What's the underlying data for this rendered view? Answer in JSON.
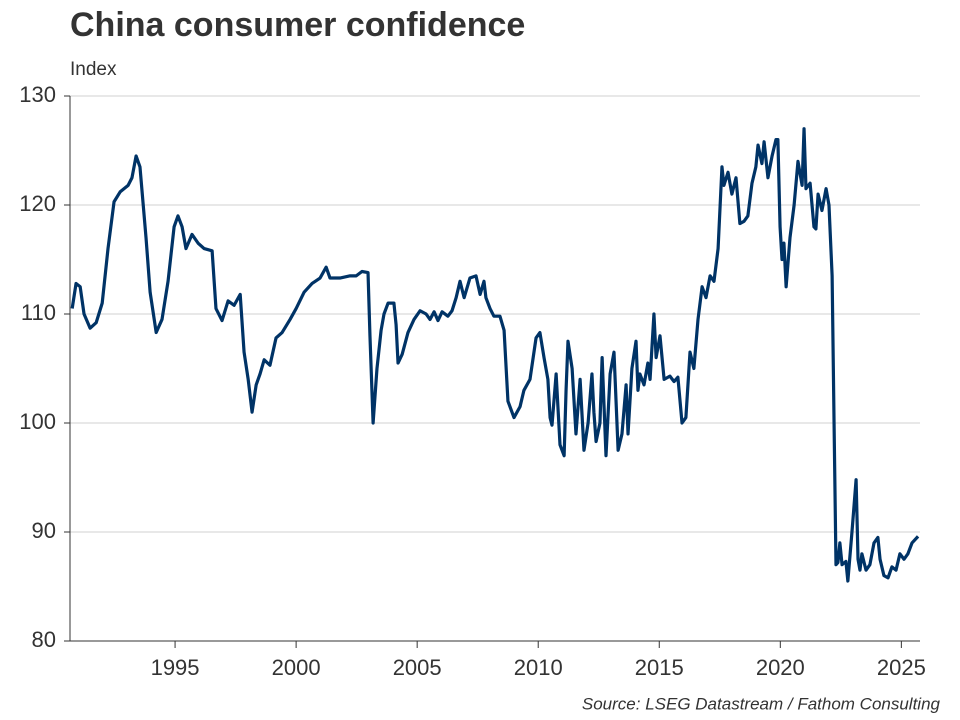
{
  "chart_data": {
    "type": "line",
    "title": "China consumer confidence",
    "subtitle": "Index",
    "source": "Source: LSEG Datastream / Fathom Consulting",
    "xlim": [
      1990.66,
      2025.77
    ],
    "xticks": [
      1995,
      2000,
      2005,
      2010,
      2015,
      2020,
      2025
    ],
    "ylim": [
      80,
      130
    ],
    "yticks": [
      80,
      90,
      100,
      110,
      120,
      130
    ],
    "grid": true,
    "series": [
      {
        "name": "China consumer confidence",
        "color": "#003366",
        "x": [
          1990.75,
          1990.91,
          1991.08,
          1991.24,
          1991.49,
          1991.74,
          1991.99,
          1992.23,
          1992.48,
          1992.73,
          1993.06,
          1993.22,
          1993.39,
          1993.55,
          1993.8,
          1993.97,
          1994.22,
          1994.46,
          1994.71,
          1994.96,
          1995.12,
          1995.29,
          1995.45,
          1995.7,
          1995.95,
          1996.2,
          1996.53,
          1996.69,
          1996.94,
          1997.19,
          1997.44,
          1997.69,
          1997.85,
          1998.02,
          1998.18,
          1998.35,
          1998.51,
          1998.68,
          1998.92,
          1999.17,
          1999.42,
          1999.75,
          2000.0,
          2000.33,
          2000.66,
          2000.99,
          2001.24,
          2001.4,
          2001.81,
          2002.23,
          2002.48,
          2002.72,
          2002.97,
          2003.05,
          2003.18,
          2003.34,
          2003.51,
          2003.63,
          2003.8,
          2004.04,
          2004.13,
          2004.21,
          2004.38,
          2004.62,
          2004.87,
          2005.12,
          2005.37,
          2005.53,
          2005.7,
          2005.86,
          2006.03,
          2006.27,
          2006.44,
          2006.61,
          2006.77,
          2006.94,
          2007.18,
          2007.43,
          2007.6,
          2007.76,
          2007.84,
          2008.01,
          2008.17,
          2008.42,
          2008.59,
          2008.75,
          2009.0,
          2009.25,
          2009.41,
          2009.66,
          2009.91,
          2010.07,
          2010.24,
          2010.4,
          2010.49,
          2010.57,
          2010.74,
          2010.9,
          2011.07,
          2011.15,
          2011.23,
          2011.4,
          2011.56,
          2011.73,
          2011.89,
          2012.06,
          2012.22,
          2012.3,
          2012.39,
          2012.55,
          2012.64,
          2012.8,
          2012.97,
          2013.13,
          2013.3,
          2013.46,
          2013.63,
          2013.71,
          2013.87,
          2014.04,
          2014.12,
          2014.2,
          2014.37,
          2014.53,
          2014.62,
          2014.78,
          2014.87,
          2015.03,
          2015.2,
          2015.44,
          2015.61,
          2015.77,
          2015.94,
          2016.1,
          2016.27,
          2016.43,
          2016.6,
          2016.77,
          2016.93,
          2017.1,
          2017.26,
          2017.43,
          2017.59,
          2017.67,
          2017.84,
          2018.0,
          2018.17,
          2018.33,
          2018.5,
          2018.66,
          2018.83,
          2018.99,
          2019.08,
          2019.24,
          2019.33,
          2019.49,
          2019.66,
          2019.82,
          2019.9,
          2019.99,
          2020.07,
          2020.15,
          2020.24,
          2020.4,
          2020.57,
          2020.73,
          2020.9,
          2020.98,
          2021.06,
          2021.23,
          2021.39,
          2021.47,
          2021.56,
          2021.72,
          2021.89,
          2022.01,
          2022.14,
          2022.22,
          2022.3,
          2022.38,
          2022.46,
          2022.55,
          2022.71,
          2022.79,
          2022.96,
          2023.13,
          2023.21,
          2023.29,
          2023.37,
          2023.54,
          2023.7,
          2023.87,
          2024.03,
          2024.12,
          2024.28,
          2024.45,
          2024.61,
          2024.78,
          2024.94,
          2025.11,
          2025.27,
          2025.44,
          2025.69
        ],
        "values": [
          110.5,
          112.8,
          112.5,
          110,
          108.7,
          109.2,
          111,
          116,
          120.3,
          121.2,
          121.8,
          122.5,
          124.5,
          123.5,
          117,
          112,
          108.3,
          109.5,
          113,
          118,
          119,
          118,
          116,
          117.3,
          116.5,
          116,
          115.8,
          110.5,
          109.4,
          111.2,
          110.8,
          111.8,
          106.5,
          104,
          101,
          103.5,
          104.5,
          105.8,
          105.3,
          107.8,
          108.3,
          109.5,
          110.5,
          112,
          112.8,
          113.3,
          114.3,
          113.3,
          113.3,
          113.5,
          113.5,
          113.9,
          113.8,
          108,
          100,
          105,
          108.5,
          110,
          111,
          111,
          109,
          105.5,
          106.3,
          108.3,
          109.5,
          110.3,
          110,
          109.5,
          110.2,
          109.4,
          110.2,
          109.8,
          110.3,
          111.5,
          113,
          111.5,
          113.3,
          113.5,
          111.8,
          113,
          111.5,
          110.5,
          109.8,
          109.8,
          108.5,
          102,
          100.5,
          101.5,
          103,
          104,
          107.8,
          108.3,
          106,
          104,
          100.5,
          99.8,
          104.5,
          98,
          97,
          103,
          107.5,
          105,
          99,
          104,
          97.5,
          100,
          104.5,
          101,
          98.3,
          100,
          106,
          97,
          104.5,
          106.5,
          97.5,
          99,
          103.5,
          99,
          105,
          107.5,
          103,
          104.5,
          103.5,
          105.5,
          104,
          110,
          106,
          108,
          104,
          104.3,
          103.8,
          104.2,
          100,
          100.5,
          106.5,
          105,
          109.5,
          112.5,
          111.5,
          113.5,
          113,
          116,
          123.5,
          121.8,
          123,
          121,
          122.5,
          118.3,
          118.5,
          119,
          122,
          123.5,
          125.5,
          123.8,
          125.8,
          122.5,
          124.5,
          126,
          126,
          118,
          115,
          116.5,
          112.5,
          117,
          120,
          124,
          121.8,
          127,
          121.5,
          122,
          118,
          117.8,
          121,
          119.5,
          121.5,
          120,
          113.5,
          100,
          87,
          87.2,
          89,
          87,
          87.3,
          85.5,
          90,
          94.8,
          87.5,
          86.5,
          88,
          86.5,
          87,
          89,
          89.5,
          87.5,
          86,
          85.8,
          86.8,
          86.5,
          88,
          87.5,
          88,
          89,
          89.6
        ]
      }
    ]
  }
}
